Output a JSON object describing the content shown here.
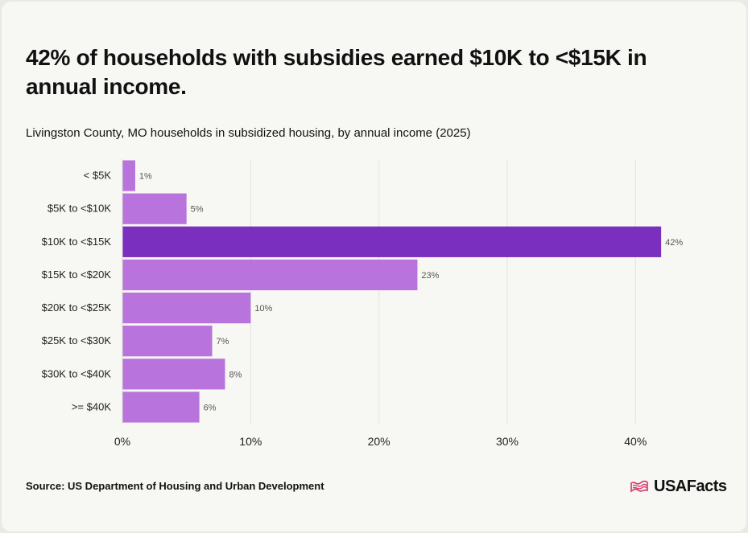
{
  "title": "42% of households with subsidies earned $10K to <$15K in annual income.",
  "subtitle": "Livingston County, MO households in subsidized housing, by annual income (2025)",
  "source": "Source: US Department of Housing and Urban Development",
  "logo": {
    "text": "USAFacts",
    "icon": "usa-flag-icon"
  },
  "colors": {
    "bar": "#b874dc",
    "highlight": "#7b2fbf",
    "grid": "#e3e3df"
  },
  "chart_data": {
    "type": "bar",
    "orientation": "horizontal",
    "categories": [
      "< $5K",
      "$5K to <$10K",
      "$10K to <$15K",
      "$15K to <$20K",
      "$20K to <$25K",
      "$25K to <$30K",
      "$30K to <$40K",
      ">= $40K"
    ],
    "values": [
      1,
      5,
      42,
      23,
      10,
      7,
      8,
      6
    ],
    "value_labels": [
      "1%",
      "5%",
      "42%",
      "23%",
      "10%",
      "7%",
      "8%",
      "6%"
    ],
    "highlight_index": 2,
    "xlim": [
      0,
      44
    ],
    "xticks": [
      0,
      10,
      20,
      30,
      40
    ],
    "xtick_labels": [
      "0%",
      "10%",
      "20%",
      "30%",
      "40%"
    ],
    "grid": true
  }
}
